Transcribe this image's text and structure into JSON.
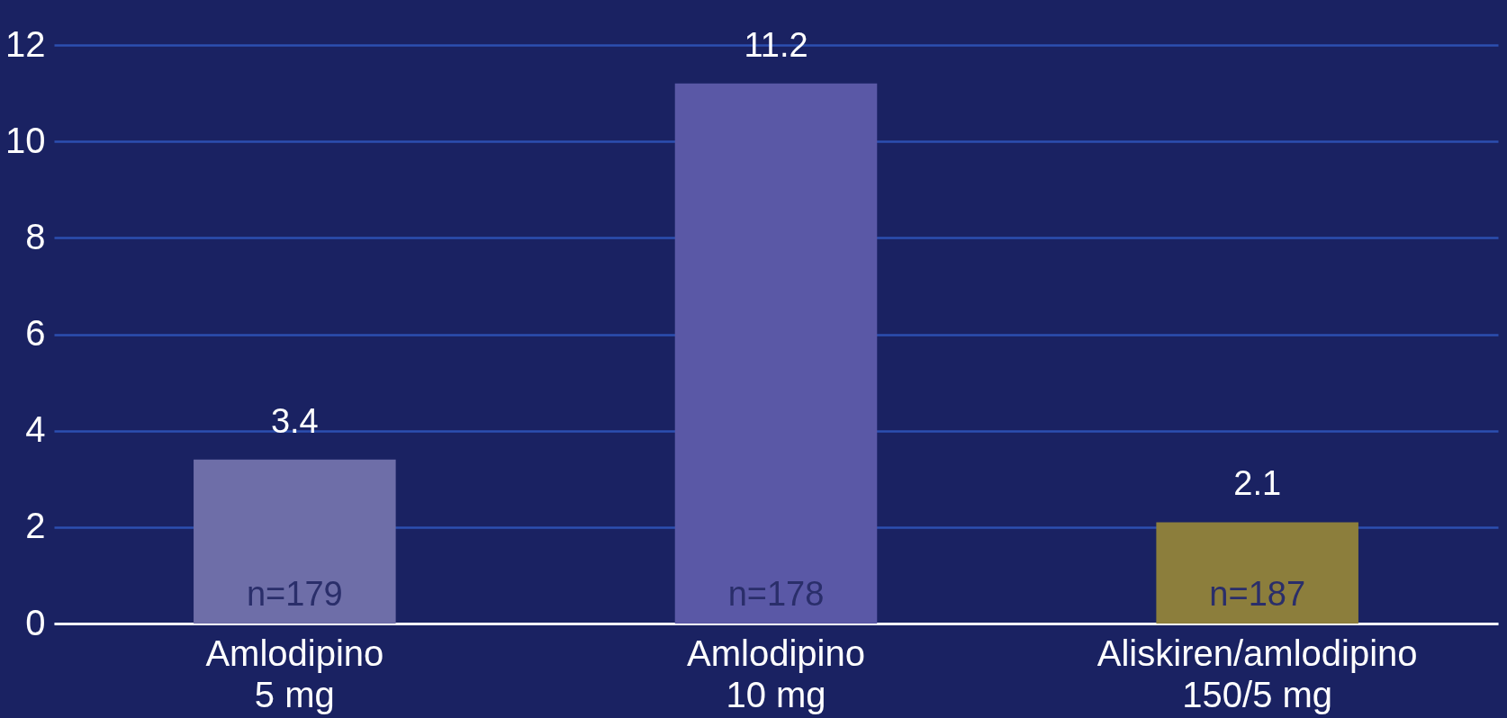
{
  "chart_data": {
    "type": "bar",
    "categories": [
      "Amlodipino\n5 mg",
      "Amlodipino\n10 mg",
      "Aliskiren/amlodipino\n150/5 mg"
    ],
    "values": [
      3.4,
      11.2,
      2.1
    ],
    "colors": [
      "#6e6ea8",
      "#5a58a6",
      "#8c7e3c"
    ],
    "data_labels": true,
    "annotations": [
      "n=179",
      "n=178",
      "n=187"
    ],
    "ylim": [
      0,
      12
    ],
    "yticks": [
      0,
      2,
      4,
      6,
      8,
      10,
      12
    ],
    "grid": "y"
  }
}
